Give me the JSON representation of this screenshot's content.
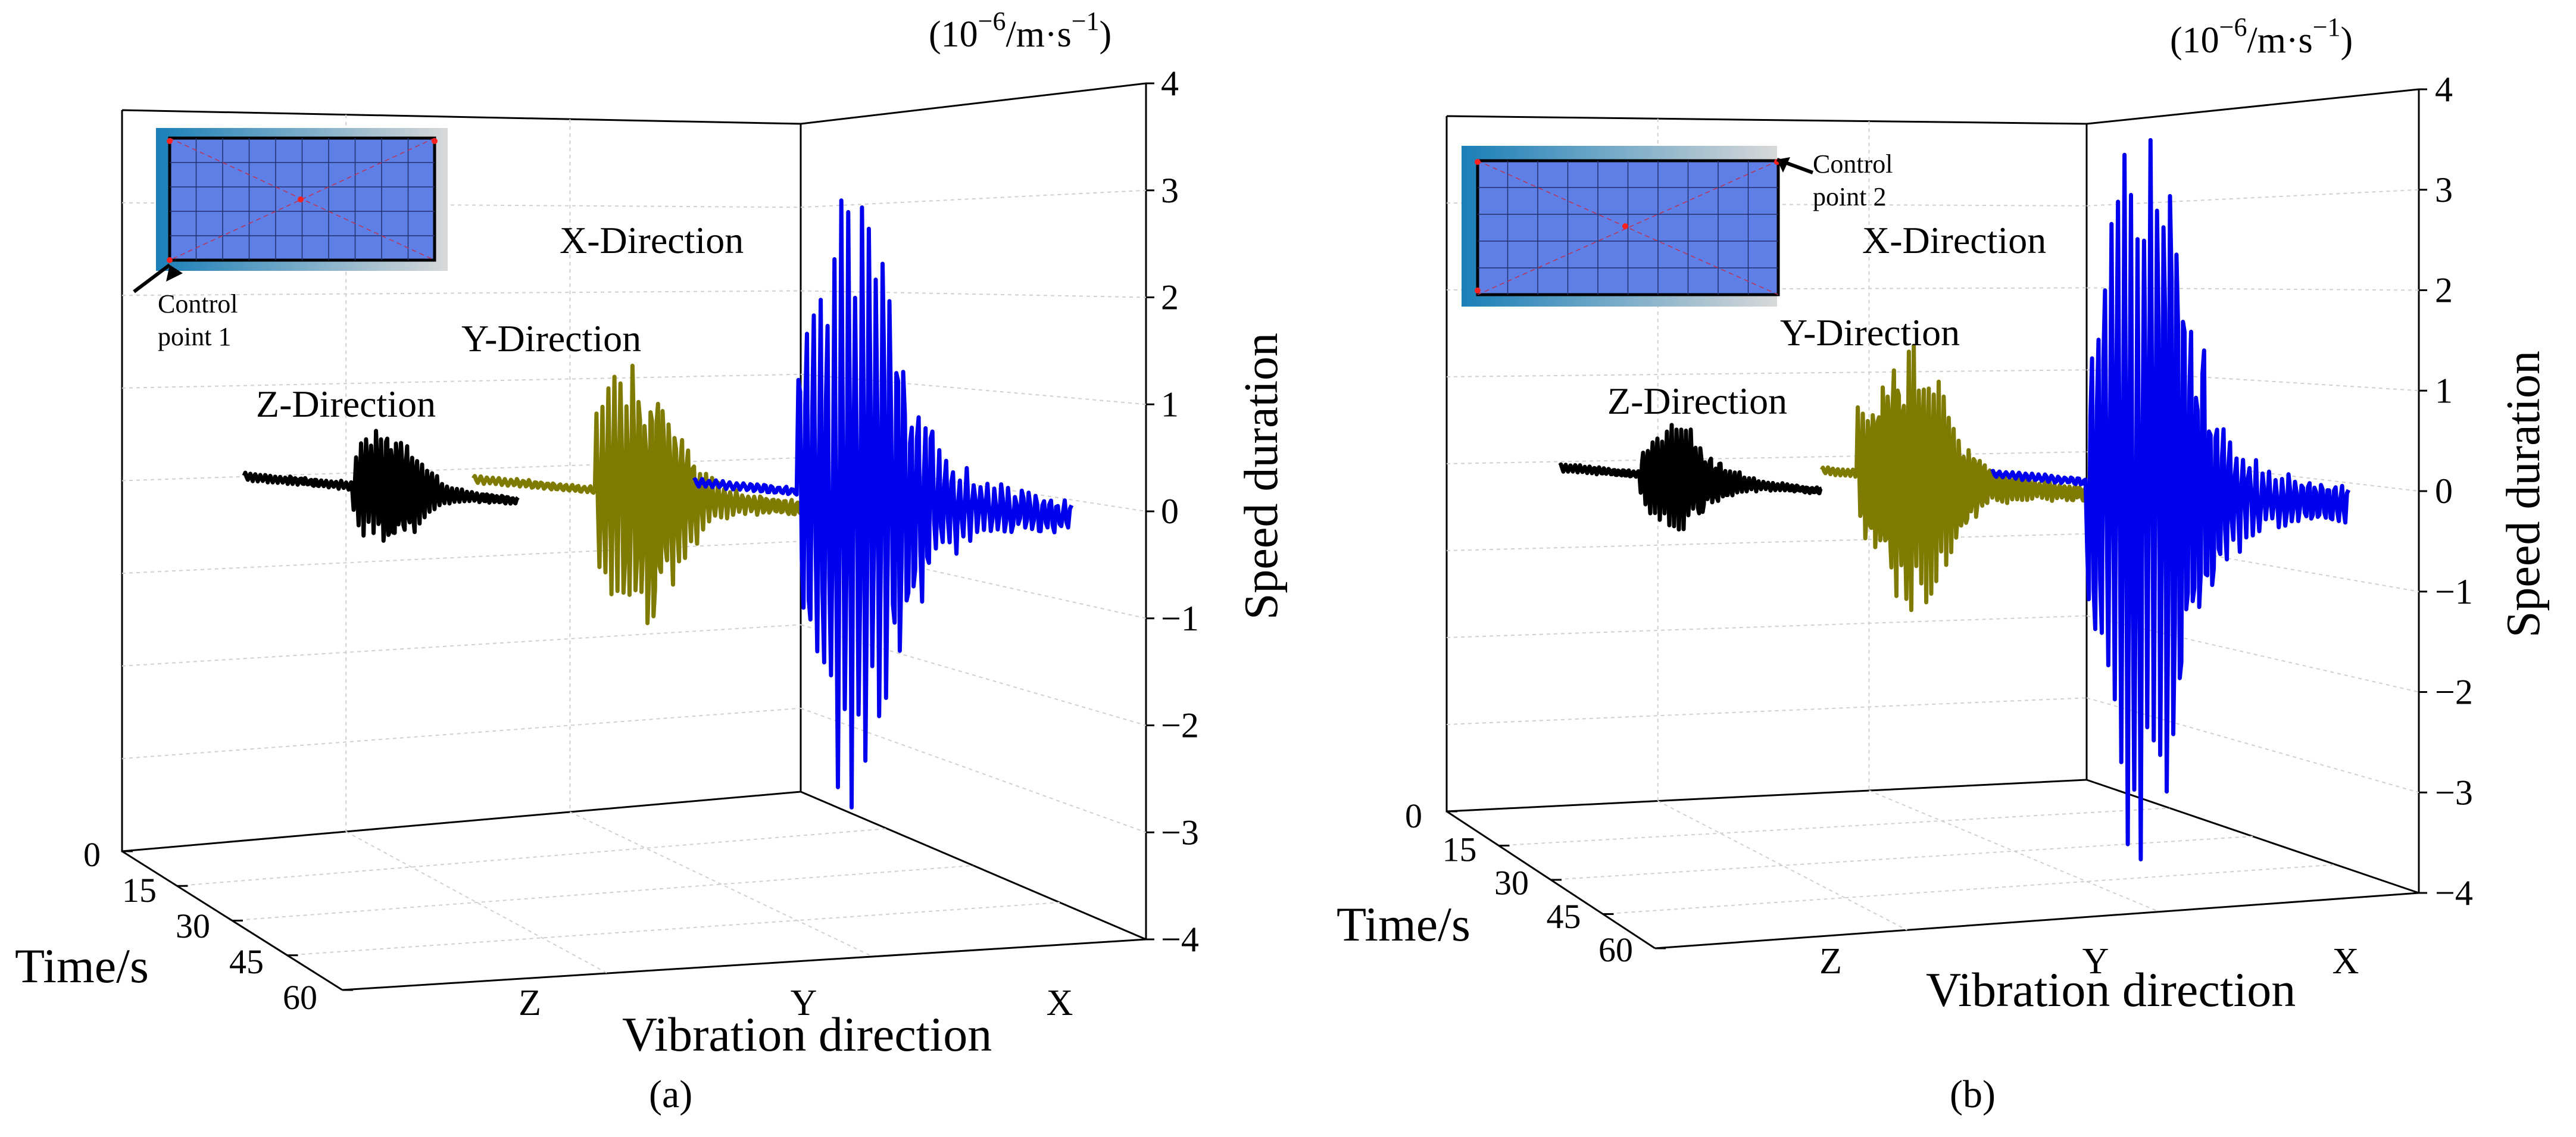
{
  "figure": {
    "panels": [
      {
        "panel_label": "(a)",
        "unit_label_base": "(10",
        "unit_label_exp": "−6",
        "unit_label_mid": "/m·s",
        "unit_label_exp2": "−1",
        "unit_label_end": ")",
        "inset_callout": [
          "Control",
          "point 1"
        ]
      },
      {
        "panel_label": "(b)",
        "unit_label_base": "(10",
        "unit_label_exp": "−6",
        "unit_label_mid": "/m·s",
        "unit_label_exp2": "−1",
        "unit_label_end": ")",
        "inset_callout": [
          "Control",
          "point 2"
        ]
      }
    ]
  },
  "chart_data": [
    {
      "type": "line",
      "panel": "a",
      "xlabel": "Vibration direction",
      "ylabel": "Time/s",
      "zlabel": "Speed duration",
      "categories": [
        "Z",
        "Y",
        "X"
      ],
      "time_ticks": [
        "0",
        "15",
        "30",
        "45",
        "60"
      ],
      "z_ticks": [
        "4",
        "3",
        "2",
        "1",
        "0",
        "−1",
        "−2",
        "−3",
        "−4"
      ],
      "zlim": [
        -4,
        4
      ],
      "tlim": [
        0,
        60
      ],
      "grid": true,
      "series": [
        {
          "name": "Z-Direction",
          "color": "#000000",
          "category": "Z",
          "peak_amplitude": 0.6,
          "onset_time": 20,
          "burst_center": 25,
          "seed": 3
        },
        {
          "name": "Y-Direction",
          "color": "#7f7a00",
          "category": "Y",
          "peak_amplitude": 1.25,
          "onset_time": 22,
          "burst_center": 27,
          "seed": 7
        },
        {
          "name": "X-Direction",
          "color": "#0000ee",
          "category": "X",
          "peak_amplitude": 2.6,
          "onset_time": 22,
          "burst_center": 27,
          "seed": 11
        }
      ]
    },
    {
      "type": "line",
      "panel": "b",
      "xlabel": "Vibration direction",
      "ylabel": "Time/s",
      "zlabel": "Speed duration",
      "categories": [
        "Z",
        "Y",
        "X"
      ],
      "time_ticks": [
        "0",
        "15",
        "30",
        "45",
        "60"
      ],
      "z_ticks": [
        "4",
        "3",
        "2",
        "1",
        "0",
        "−1",
        "−2",
        "−3",
        "−4"
      ],
      "zlim": [
        -4,
        4
      ],
      "tlim": [
        0,
        60
      ],
      "grid": true,
      "series": [
        {
          "name": "Z-Direction",
          "color": "#000000",
          "category": "Z",
          "peak_amplitude": 0.5,
          "onset_time": 20,
          "burst_center": 25,
          "seed": 5
        },
        {
          "name": "Y-Direction",
          "color": "#7f7a00",
          "category": "Y",
          "peak_amplitude": 1.2,
          "onset_time": 22,
          "burst_center": 27,
          "seed": 9
        },
        {
          "name": "X-Direction",
          "color": "#0000ee",
          "category": "X",
          "peak_amplitude": 3.3,
          "onset_time": 22,
          "burst_center": 27,
          "seed": 13
        }
      ]
    }
  ]
}
